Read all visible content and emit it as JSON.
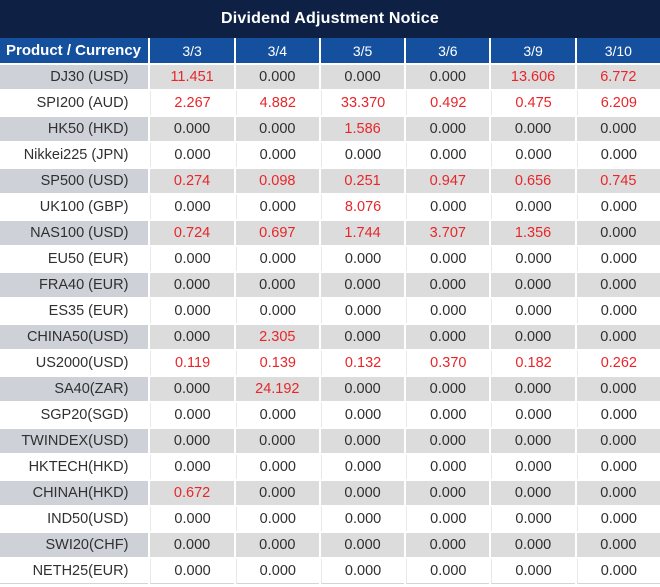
{
  "title": "Dividend Adjustment Notice",
  "colors": {
    "titlebar_bg": "#0e2145",
    "header_bg": "#14509e",
    "shaded_product_bg": "#ced2d8",
    "shaded_value_bg": "#dcdcdc",
    "value_text": "#2f2f2f",
    "highlight_red": "#e8262a"
  },
  "table": {
    "product_header": "Product / Currency",
    "date_headers": [
      "3/3",
      "3/4",
      "3/5",
      "3/6",
      "3/9",
      "3/10"
    ],
    "rows": [
      {
        "product": "DJ30 (USD)",
        "values": [
          "11.451",
          "0.000",
          "0.000",
          "0.000",
          "13.606",
          "6.772"
        ],
        "red": [
          true,
          false,
          false,
          false,
          true,
          true
        ]
      },
      {
        "product": "SPI200 (AUD)",
        "values": [
          "2.267",
          "4.882",
          "33.370",
          "0.492",
          "0.475",
          "6.209"
        ],
        "red": [
          true,
          true,
          true,
          true,
          true,
          true
        ]
      },
      {
        "product": "HK50 (HKD)",
        "values": [
          "0.000",
          "0.000",
          "1.586",
          "0.000",
          "0.000",
          "0.000"
        ],
        "red": [
          false,
          false,
          true,
          false,
          false,
          false
        ]
      },
      {
        "product": "Nikkei225 (JPN)",
        "values": [
          "0.000",
          "0.000",
          "0.000",
          "0.000",
          "0.000",
          "0.000"
        ],
        "red": [
          false,
          false,
          false,
          false,
          false,
          false
        ]
      },
      {
        "product": "SP500 (USD)",
        "values": [
          "0.274",
          "0.098",
          "0.251",
          "0.947",
          "0.656",
          "0.745"
        ],
        "red": [
          true,
          true,
          true,
          true,
          true,
          true
        ]
      },
      {
        "product": "UK100 (GBP)",
        "values": [
          "0.000",
          "0.000",
          "8.076",
          "0.000",
          "0.000",
          "0.000"
        ],
        "red": [
          false,
          false,
          true,
          false,
          false,
          false
        ]
      },
      {
        "product": "NAS100 (USD)",
        "values": [
          "0.724",
          "0.697",
          "1.744",
          "3.707",
          "1.356",
          "0.000"
        ],
        "red": [
          true,
          true,
          true,
          true,
          true,
          false
        ]
      },
      {
        "product": "EU50 (EUR)",
        "values": [
          "0.000",
          "0.000",
          "0.000",
          "0.000",
          "0.000",
          "0.000"
        ],
        "red": [
          false,
          false,
          false,
          false,
          false,
          false
        ]
      },
      {
        "product": "FRA40 (EUR)",
        "values": [
          "0.000",
          "0.000",
          "0.000",
          "0.000",
          "0.000",
          "0.000"
        ],
        "red": [
          false,
          false,
          false,
          false,
          false,
          false
        ]
      },
      {
        "product": "ES35 (EUR)",
        "values": [
          "0.000",
          "0.000",
          "0.000",
          "0.000",
          "0.000",
          "0.000"
        ],
        "red": [
          false,
          false,
          false,
          false,
          false,
          false
        ]
      },
      {
        "product": "CHINA50(USD)",
        "values": [
          "0.000",
          "2.305",
          "0.000",
          "0.000",
          "0.000",
          "0.000"
        ],
        "red": [
          false,
          true,
          false,
          false,
          false,
          false
        ]
      },
      {
        "product": "US2000(USD)",
        "values": [
          "0.119",
          "0.139",
          "0.132",
          "0.370",
          "0.182",
          "0.262"
        ],
        "red": [
          true,
          true,
          true,
          true,
          true,
          true
        ]
      },
      {
        "product": "SA40(ZAR)",
        "values": [
          "0.000",
          "24.192",
          "0.000",
          "0.000",
          "0.000",
          "0.000"
        ],
        "red": [
          false,
          true,
          false,
          false,
          false,
          false
        ]
      },
      {
        "product": "SGP20(SGD)",
        "values": [
          "0.000",
          "0.000",
          "0.000",
          "0.000",
          "0.000",
          "0.000"
        ],
        "red": [
          false,
          false,
          false,
          false,
          false,
          false
        ]
      },
      {
        "product": "TWINDEX(USD)",
        "values": [
          "0.000",
          "0.000",
          "0.000",
          "0.000",
          "0.000",
          "0.000"
        ],
        "red": [
          false,
          false,
          false,
          false,
          false,
          false
        ]
      },
      {
        "product": "HKTECH(HKD)",
        "values": [
          "0.000",
          "0.000",
          "0.000",
          "0.000",
          "0.000",
          "0.000"
        ],
        "red": [
          false,
          false,
          false,
          false,
          false,
          false
        ]
      },
      {
        "product": "CHINAH(HKD)",
        "values": [
          "0.672",
          "0.000",
          "0.000",
          "0.000",
          "0.000",
          "0.000"
        ],
        "red": [
          true,
          false,
          false,
          false,
          false,
          false
        ]
      },
      {
        "product": "IND50(USD)",
        "values": [
          "0.000",
          "0.000",
          "0.000",
          "0.000",
          "0.000",
          "0.000"
        ],
        "red": [
          false,
          false,
          false,
          false,
          false,
          false
        ]
      },
      {
        "product": "SWI20(CHF)",
        "values": [
          "0.000",
          "0.000",
          "0.000",
          "0.000",
          "0.000",
          "0.000"
        ],
        "red": [
          false,
          false,
          false,
          false,
          false,
          false
        ]
      },
      {
        "product": "NETH25(EUR)",
        "values": [
          "0.000",
          "0.000",
          "0.000",
          "0.000",
          "0.000",
          "0.000"
        ],
        "red": [
          false,
          false,
          false,
          false,
          false,
          false
        ]
      }
    ]
  }
}
